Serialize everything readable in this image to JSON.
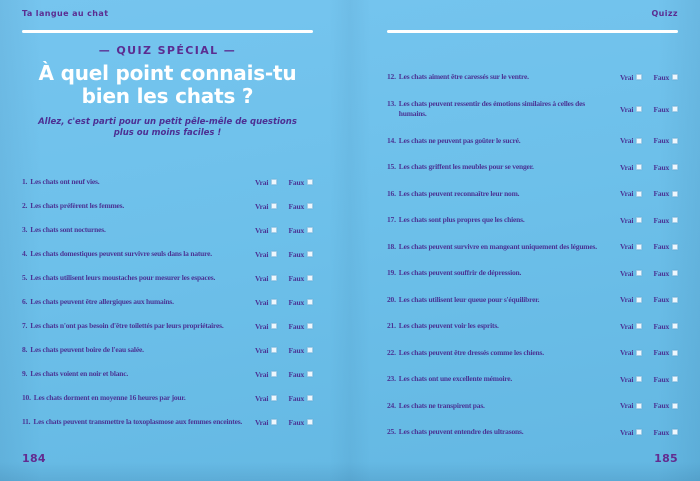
{
  "header": {
    "left_title": "Ta langue au chat",
    "right_title": "Quizz"
  },
  "answers": {
    "vrai": "Vrai",
    "faux": "Faux"
  },
  "colors": {
    "background": "#6dc0ea",
    "heading_purple": "#5b2d91",
    "body_purple": "#4b3494",
    "title_white": "#ffffff"
  },
  "left_page": {
    "kicker": "— QUIZ SPÉCIAL —",
    "title": "À quel point connais-tu bien les chats ?",
    "subtitle": "Allez, c'est parti pour un petit pêle-mêle de questions plus ou moins faciles !",
    "page_number": "184",
    "questions": [
      {
        "num": "1.",
        "text": "Les chats ont neuf vies."
      },
      {
        "num": "2.",
        "text": "Les chats préfèrent les femmes."
      },
      {
        "num": "3.",
        "text": "Les chats sont nocturnes."
      },
      {
        "num": "4.",
        "text": "Les chats domestiques peuvent survivre seuls dans la nature."
      },
      {
        "num": "5.",
        "text": "Les chats utilisent leurs moustaches pour mesurer les espaces."
      },
      {
        "num": "6.",
        "text": "Les chats peuvent être allergiques aux humains."
      },
      {
        "num": "7.",
        "text": "Les chats n'ont pas besoin d'être toilettés par leurs propriétaires."
      },
      {
        "num": "8.",
        "text": "Les chats peuvent boire de l'eau salée."
      },
      {
        "num": "9.",
        "text": "Les chats voient en noir et blanc."
      },
      {
        "num": "10.",
        "text": "Les chats dorment en moyenne 16 heures par jour."
      },
      {
        "num": "11.",
        "text": "Les chats peuvent transmettre la toxoplasmose aux femmes enceintes."
      }
    ]
  },
  "right_page": {
    "page_number": "185",
    "questions": [
      {
        "num": "12.",
        "text": "Les chats aiment être caressés sur le ventre."
      },
      {
        "num": "13.",
        "text": "Les chats peuvent ressentir des émotions similaires à celles des humains."
      },
      {
        "num": "14.",
        "text": "Les chats ne peuvent pas goûter le sucré."
      },
      {
        "num": "15.",
        "text": "Les chats griffent les meubles pour se venger."
      },
      {
        "num": "16.",
        "text": "Les chats peuvent reconnaître leur nom."
      },
      {
        "num": "17.",
        "text": "Les chats sont plus propres que les chiens."
      },
      {
        "num": "18.",
        "text": "Les chats peuvent survivre en mangeant uniquement des légumes."
      },
      {
        "num": "19.",
        "text": "Les chats peuvent souffrir de dépression."
      },
      {
        "num": "20.",
        "text": "Les chats utilisent leur queue pour s'équilibrer."
      },
      {
        "num": "21.",
        "text": "Les chats peuvent voir les esprits."
      },
      {
        "num": "22.",
        "text": "Les chats peuvent être dressés comme les chiens."
      },
      {
        "num": "23.",
        "text": "Les chats ont une excellente mémoire."
      },
      {
        "num": "24.",
        "text": "Les chats ne transpirent pas."
      },
      {
        "num": "25.",
        "text": "Les chats peuvent entendre des ultrasons."
      }
    ]
  }
}
